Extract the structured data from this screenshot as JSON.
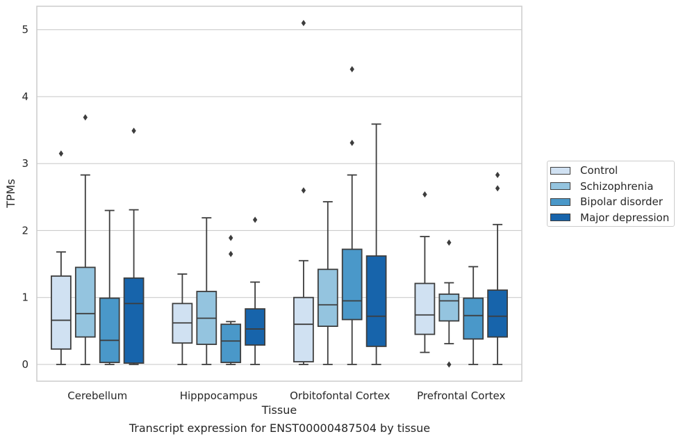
{
  "chart_data": {
    "type": "box",
    "title": "",
    "caption": "Transcript expression for ENST00000487504 by tissue",
    "xlabel": "Tissue",
    "ylabel": "TPMs",
    "ylim": [
      -0.25,
      5.35
    ],
    "yticks": [
      "0",
      "1",
      "2",
      "3",
      "4",
      "5"
    ],
    "grid": "horizontal",
    "legend_placement": "center-right outside",
    "categories": [
      "Cerebellum",
      "Hipppocampus",
      "Orbitofontal Cortex",
      "Prefrontal Cortex"
    ],
    "series": [
      {
        "name": "Control",
        "color": "#d0e1f2",
        "boxes": [
          {
            "min": 0.0,
            "q1": 0.23,
            "median": 0.66,
            "q3": 1.32,
            "max": 1.68,
            "outliers": [
              3.15
            ]
          },
          {
            "min": 0.0,
            "q1": 0.32,
            "median": 0.62,
            "q3": 0.91,
            "max": 1.35,
            "outliers": []
          },
          {
            "min": 0.0,
            "q1": 0.04,
            "median": 0.6,
            "q3": 1.0,
            "max": 1.55,
            "outliers": [
              2.6,
              5.1
            ]
          },
          {
            "min": 0.18,
            "q1": 0.45,
            "median": 0.74,
            "q3": 1.21,
            "max": 1.91,
            "outliers": [
              2.54
            ]
          }
        ]
      },
      {
        "name": "Schizophrenia",
        "color": "#94c4df",
        "boxes": [
          {
            "min": 0.0,
            "q1": 0.41,
            "median": 0.76,
            "q3": 1.45,
            "max": 2.83,
            "outliers": [
              3.69
            ]
          },
          {
            "min": 0.0,
            "q1": 0.3,
            "median": 0.69,
            "q3": 1.09,
            "max": 2.19,
            "outliers": []
          },
          {
            "min": 0.0,
            "q1": 0.57,
            "median": 0.89,
            "q3": 1.42,
            "max": 2.43,
            "outliers": []
          },
          {
            "min": 0.31,
            "q1": 0.65,
            "median": 0.95,
            "q3": 1.05,
            "max": 1.22,
            "outliers": [
              1.82,
              0.0
            ]
          }
        ]
      },
      {
        "name": "Bipolar disorder",
        "color": "#4a98c9",
        "boxes": [
          {
            "min": 0.0,
            "q1": 0.03,
            "median": 0.36,
            "q3": 0.99,
            "max": 2.3,
            "outliers": []
          },
          {
            "min": 0.0,
            "q1": 0.03,
            "median": 0.35,
            "q3": 0.6,
            "max": 0.64,
            "outliers": [
              1.89,
              1.65
            ]
          },
          {
            "min": 0.0,
            "q1": 0.67,
            "median": 0.95,
            "q3": 1.72,
            "max": 2.83,
            "outliers": [
              3.31,
              4.41
            ]
          },
          {
            "min": 0.0,
            "q1": 0.38,
            "median": 0.73,
            "q3": 0.99,
            "max": 1.46,
            "outliers": []
          }
        ]
      },
      {
        "name": "Major depression",
        "color": "#1764ab",
        "boxes": [
          {
            "min": 0.0,
            "q1": 0.02,
            "median": 0.91,
            "q3": 1.29,
            "max": 2.31,
            "outliers": [
              3.49
            ]
          },
          {
            "min": 0.0,
            "q1": 0.29,
            "median": 0.53,
            "q3": 0.83,
            "max": 1.23,
            "outliers": [
              2.16
            ]
          },
          {
            "min": 0.0,
            "q1": 0.27,
            "median": 0.72,
            "q3": 1.62,
            "max": 3.59,
            "outliers": []
          },
          {
            "min": 0.0,
            "q1": 0.41,
            "median": 0.72,
            "q3": 1.11,
            "max": 2.09,
            "outliers": [
              2.63,
              2.83
            ]
          }
        ]
      }
    ]
  }
}
